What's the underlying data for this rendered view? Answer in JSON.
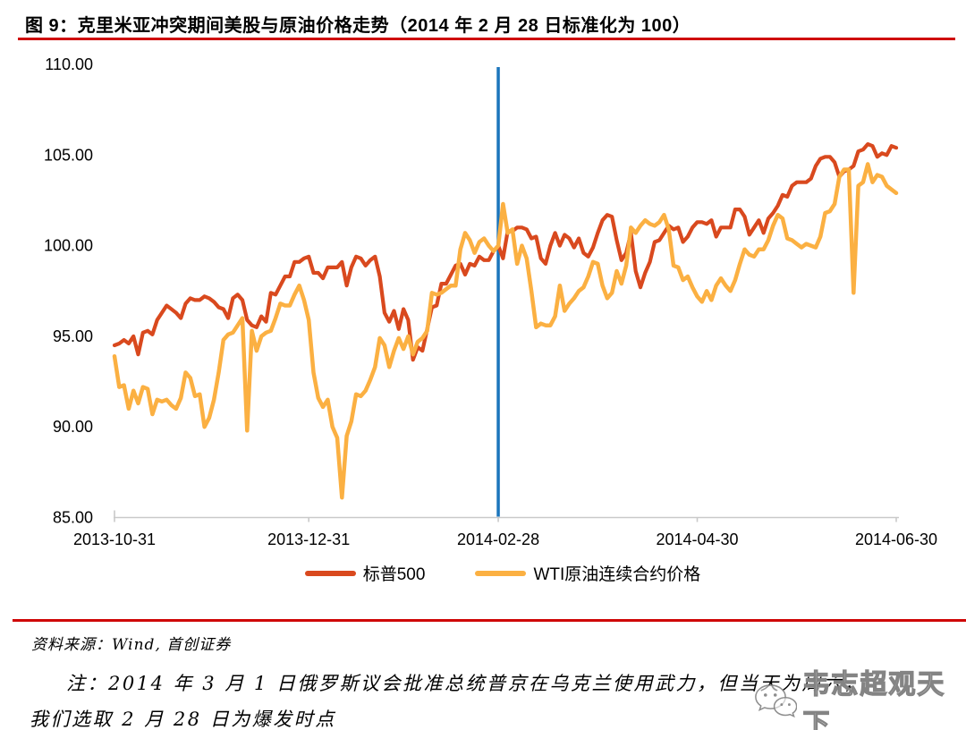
{
  "figure": {
    "title": "图 9：克里米亚冲突期间美股与原油价格走势（2014 年 2 月 28 日标准化为 100）",
    "rule_color": "#cf0606"
  },
  "footer": {
    "source": "资料来源：Wind, 首创证券",
    "note_line1": "注：2014 年 3 月 1 日俄罗斯议会批准总统普京在乌克兰使用武力，但当天为周六，",
    "note_line2": "我们选取 2 月 28 日为爆发时点",
    "watermark": "韦志超观天下"
  },
  "chart_data": {
    "type": "line",
    "title": "克里米亚冲突期间美股与原油价格走势（2014 年 2 月 28 日标准化为 100）",
    "xlabel": "",
    "ylabel": "",
    "grid": false,
    "legend_position": "bottom",
    "ylim": [
      85,
      110
    ],
    "axis_color": "#c9c9c9",
    "y_ticks": [
      {
        "v": 85,
        "label": "85.00"
      },
      {
        "v": 90,
        "label": "90.00"
      },
      {
        "v": 95,
        "label": "95.00"
      },
      {
        "v": 100,
        "label": "100.00"
      },
      {
        "v": 105,
        "label": "105.00"
      },
      {
        "v": 110,
        "label": "110.00"
      }
    ],
    "x_tick_labels": [
      "2013-10-31",
      "2013-12-31",
      "2014-02-28",
      "2014-04-30",
      "2014-06-30"
    ],
    "event_line": {
      "x": "2014-02-28",
      "color": "#1b75bc",
      "meaning": "2014-02-28 爆发时点"
    },
    "x": [
      "2013-10-31",
      "2013-11-01",
      "2013-11-04",
      "2013-11-05",
      "2013-11-06",
      "2013-11-07",
      "2013-11-08",
      "2013-11-11",
      "2013-11-12",
      "2013-11-13",
      "2013-11-14",
      "2013-11-15",
      "2013-11-18",
      "2013-11-19",
      "2013-11-20",
      "2013-11-21",
      "2013-11-22",
      "2013-11-25",
      "2013-11-26",
      "2013-11-27",
      "2013-11-29",
      "2013-12-02",
      "2013-12-03",
      "2013-12-04",
      "2013-12-05",
      "2013-12-06",
      "2013-12-09",
      "2013-12-10",
      "2013-12-11",
      "2013-12-12",
      "2013-12-13",
      "2013-12-16",
      "2013-12-17",
      "2013-12-18",
      "2013-12-19",
      "2013-12-20",
      "2013-12-23",
      "2013-12-24",
      "2013-12-26",
      "2013-12-27",
      "2013-12-30",
      "2013-12-31",
      "2014-01-02",
      "2014-01-03",
      "2014-01-06",
      "2014-01-07",
      "2014-01-08",
      "2014-01-09",
      "2014-01-10",
      "2014-01-13",
      "2014-01-14",
      "2014-01-15",
      "2014-01-16",
      "2014-01-17",
      "2014-01-21",
      "2014-01-22",
      "2014-01-23",
      "2014-01-24",
      "2014-01-27",
      "2014-01-28",
      "2014-01-29",
      "2014-01-30",
      "2014-01-31",
      "2014-02-03",
      "2014-02-04",
      "2014-02-05",
      "2014-02-06",
      "2014-02-07",
      "2014-02-10",
      "2014-02-11",
      "2014-02-12",
      "2014-02-13",
      "2014-02-14",
      "2014-02-18",
      "2014-02-19",
      "2014-02-20",
      "2014-02-21",
      "2014-02-24",
      "2014-02-25",
      "2014-02-26",
      "2014-02-27",
      "2014-02-28",
      "2014-03-03",
      "2014-03-04",
      "2014-03-05",
      "2014-03-06",
      "2014-03-07",
      "2014-03-10",
      "2014-03-11",
      "2014-03-12",
      "2014-03-13",
      "2014-03-14",
      "2014-03-17",
      "2014-03-18",
      "2014-03-19",
      "2014-03-20",
      "2014-03-21",
      "2014-03-24",
      "2014-03-25",
      "2014-03-26",
      "2014-03-27",
      "2014-03-28",
      "2014-03-31",
      "2014-04-01",
      "2014-04-02",
      "2014-04-03",
      "2014-04-04",
      "2014-04-07",
      "2014-04-08",
      "2014-04-09",
      "2014-04-10",
      "2014-04-11",
      "2014-04-14",
      "2014-04-15",
      "2014-04-16",
      "2014-04-17",
      "2014-04-21",
      "2014-04-22",
      "2014-04-23",
      "2014-04-24",
      "2014-04-25",
      "2014-04-28",
      "2014-04-29",
      "2014-04-30",
      "2014-05-01",
      "2014-05-02",
      "2014-05-05",
      "2014-05-06",
      "2014-05-07",
      "2014-05-08",
      "2014-05-09",
      "2014-05-12",
      "2014-05-13",
      "2014-05-14",
      "2014-05-15",
      "2014-05-16",
      "2014-05-19",
      "2014-05-20",
      "2014-05-21",
      "2014-05-22",
      "2014-05-23",
      "2014-05-27",
      "2014-05-28",
      "2014-05-29",
      "2014-05-30",
      "2014-06-02",
      "2014-06-03",
      "2014-06-04",
      "2014-06-05",
      "2014-06-06",
      "2014-06-09",
      "2014-06-10",
      "2014-06-11",
      "2014-06-12",
      "2014-06-13",
      "2014-06-16",
      "2014-06-17",
      "2014-06-18",
      "2014-06-19",
      "2014-06-20",
      "2014-06-23",
      "2014-06-24",
      "2014-06-25",
      "2014-06-26",
      "2014-06-27",
      "2014-06-30"
    ],
    "series": [
      {
        "name": "标普500",
        "color": "#d9491e",
        "width": 4.2,
        "values": [
          94.5,
          94.6,
          94.8,
          94.6,
          95.0,
          94.0,
          95.2,
          95.3,
          95.1,
          95.9,
          96.3,
          96.7,
          96.5,
          96.3,
          96.0,
          96.8,
          97.1,
          97.0,
          97.0,
          97.2,
          97.1,
          96.9,
          96.6,
          96.5,
          96.0,
          97.1,
          97.3,
          97.0,
          95.9,
          95.6,
          95.5,
          96.1,
          95.8,
          97.4,
          97.3,
          97.8,
          98.3,
          98.3,
          99.1,
          99.1,
          99.3,
          99.4,
          98.5,
          98.5,
          98.2,
          98.8,
          98.8,
          98.8,
          99.1,
          97.8,
          98.8,
          99.4,
          99.3,
          98.9,
          99.2,
          99.4,
          98.3,
          96.3,
          95.8,
          96.4,
          95.4,
          96.5,
          95.9,
          93.7,
          94.4,
          94.2,
          95.4,
          96.6,
          96.7,
          97.9,
          97.9,
          98.4,
          98.9,
          99.0,
          98.4,
          99.0,
          98.9,
          99.4,
          99.2,
          99.2,
          99.7,
          100.0,
          99.3,
          100.8,
          100.8,
          101.0,
          101.0,
          100.9,
          100.4,
          100.5,
          99.3,
          99.0,
          100.0,
          100.7,
          100.0,
          100.6,
          100.4,
          99.9,
          100.4,
          99.6,
          99.4,
          99.9,
          100.7,
          101.4,
          101.7,
          101.6,
          100.3,
          99.2,
          99.6,
          100.7,
          98.6,
          97.7,
          98.5,
          99.1,
          100.2,
          100.3,
          100.7,
          101.1,
          100.9,
          101.0,
          100.2,
          100.5,
          101.0,
          101.3,
          101.3,
          101.2,
          101.4,
          100.5,
          101.0,
          101.0,
          101.0,
          102.0,
          102.0,
          101.6,
          100.6,
          101.0,
          101.4,
          100.7,
          101.5,
          101.8,
          102.2,
          102.8,
          102.7,
          103.3,
          103.5,
          103.5,
          103.5,
          103.7,
          104.4,
          104.8,
          104.9,
          104.9,
          104.6,
          103.8,
          104.1,
          104.2,
          104.4,
          105.2,
          105.3,
          105.6,
          105.5,
          104.9,
          105.1,
          105.0,
          105.5,
          105.4
        ]
      },
      {
        "name": "WTI原油连续合约价格",
        "color": "#fbb042",
        "width": 4.5,
        "values": [
          93.9,
          92.2,
          92.3,
          91.0,
          92.0,
          91.3,
          92.2,
          92.1,
          90.7,
          91.5,
          91.4,
          91.5,
          91.2,
          91.0,
          91.6,
          93.0,
          92.7,
          91.7,
          91.8,
          90.0,
          90.5,
          91.5,
          93.0,
          94.8,
          95.1,
          95.2,
          95.6,
          96.0,
          89.8,
          95.3,
          94.2,
          95.0,
          95.2,
          95.3,
          96.0,
          96.8,
          96.7,
          96.7,
          97.3,
          97.8,
          97.0,
          95.9,
          93.0,
          91.6,
          91.1,
          91.5,
          90.0,
          89.4,
          86.1,
          89.5,
          90.3,
          91.8,
          91.7,
          92.0,
          92.6,
          93.3,
          94.9,
          94.5,
          93.3,
          94.2,
          94.9,
          94.3,
          95.0,
          94.0,
          94.7,
          94.9,
          95.3,
          97.4,
          97.3,
          97.4,
          97.6,
          97.8,
          97.8,
          99.8,
          100.7,
          100.3,
          99.6,
          100.2,
          100.4,
          100.0,
          99.7,
          100.0,
          102.3,
          100.7,
          100.9,
          99.0,
          100.0,
          99.3,
          97.5,
          95.5,
          95.7,
          95.6,
          95.6,
          96.1,
          97.8,
          96.4,
          96.8,
          97.1,
          97.5,
          97.7,
          98.3,
          99.1,
          99.0,
          97.8,
          97.1,
          97.4,
          98.6,
          97.9,
          98.9,
          101.0,
          100.7,
          101.1,
          101.4,
          101.2,
          101.1,
          101.3,
          101.7,
          100.9,
          98.9,
          98.8,
          98.1,
          98.3,
          97.7,
          97.2,
          96.9,
          97.5,
          97.0,
          97.8,
          98.2,
          97.8,
          97.5,
          98.1,
          99.0,
          99.8,
          99.5,
          99.4,
          99.8,
          99.8,
          100.3,
          101.1,
          101.7,
          101.5,
          100.4,
          100.3,
          100.1,
          99.9,
          100.1,
          100.0,
          99.9,
          100.5,
          101.8,
          101.9,
          102.3,
          103.8,
          104.2,
          104.2,
          97.4,
          103.3,
          103.5,
          104.5,
          103.5,
          103.9,
          103.8,
          103.3,
          103.1,
          102.9
        ]
      }
    ]
  }
}
